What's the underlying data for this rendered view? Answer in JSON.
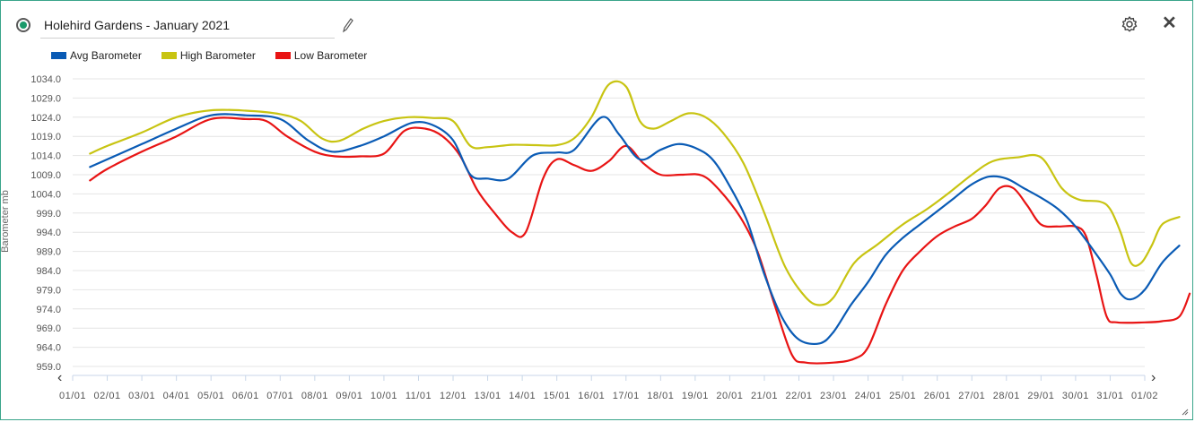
{
  "header": {
    "title": "Holehird Gardens - January 2021",
    "icons": [
      "radio-selected-icon",
      "pencil-icon",
      "gear-icon",
      "close-icon"
    ],
    "close_label": "✕"
  },
  "nav": {
    "prev": "‹",
    "next": "›"
  },
  "colors": {
    "border": "#3aa58a",
    "avg": "#0a5bb5",
    "high": "#c8c412",
    "low": "#e81414",
    "grid": "#e4e4e4"
  },
  "chart_data": {
    "type": "line",
    "ylabel": "Barometer mb",
    "ylim": [
      959.0,
      1034.0
    ],
    "yticks": [
      "1034.0",
      "1029.0",
      "1024.0",
      "1019.0",
      "1014.0",
      "1009.0",
      "1004.0",
      "999.0",
      "994.0",
      "989.0",
      "984.0",
      "979.0",
      "974.0",
      "969.0",
      "964.0",
      "959.0"
    ],
    "xtick_labels": [
      "01/01",
      "02/01",
      "03/01",
      "04/01",
      "05/01",
      "06/01",
      "07/01",
      "08/01",
      "09/01",
      "10/01",
      "11/01",
      "12/01",
      "13/01",
      "14/01",
      "15/01",
      "16/01",
      "17/01",
      "18/01",
      "19/01",
      "20/01",
      "21/01",
      "22/01",
      "23/01",
      "24/01",
      "25/01",
      "26/01",
      "27/01",
      "28/01",
      "29/01",
      "30/01",
      "31/01",
      "01/02"
    ],
    "legend_placement": "top-left",
    "grid": true,
    "series": [
      {
        "name": "Avg Barometer",
        "color": "#0a5bb5",
        "points": [
          [
            0.5,
            1011.0
          ],
          [
            1,
            1013.0
          ],
          [
            2,
            1017.0
          ],
          [
            3,
            1021.0
          ],
          [
            4,
            1024.5
          ],
          [
            5,
            1024.5
          ],
          [
            6,
            1023.5
          ],
          [
            6.8,
            1018.0
          ],
          [
            7.5,
            1015.0
          ],
          [
            8.3,
            1016.5
          ],
          [
            9,
            1019.0
          ],
          [
            9.8,
            1022.5
          ],
          [
            10.4,
            1022.0
          ],
          [
            11,
            1018.0
          ],
          [
            11.5,
            1009.0
          ],
          [
            12,
            1008.0
          ],
          [
            12.6,
            1008.0
          ],
          [
            13.3,
            1014.0
          ],
          [
            14,
            1014.8
          ],
          [
            14.5,
            1015.5
          ],
          [
            15.3,
            1024.0
          ],
          [
            15.8,
            1019.5
          ],
          [
            16.4,
            1013.0
          ],
          [
            17,
            1015.5
          ],
          [
            17.5,
            1017.0
          ],
          [
            18,
            1016.0
          ],
          [
            18.5,
            1013.0
          ],
          [
            19,
            1006.0
          ],
          [
            19.5,
            997.0
          ],
          [
            20,
            983.0
          ],
          [
            20.5,
            972.0
          ],
          [
            21,
            966.0
          ],
          [
            21.6,
            965.0
          ],
          [
            22,
            968.0
          ],
          [
            22.5,
            975.0
          ],
          [
            23,
            981.0
          ],
          [
            23.5,
            988.0
          ],
          [
            24,
            992.5
          ],
          [
            24.5,
            996.0
          ],
          [
            25,
            999.5
          ],
          [
            25.5,
            1003.0
          ],
          [
            26,
            1006.5
          ],
          [
            26.5,
            1008.5
          ],
          [
            27,
            1008.0
          ],
          [
            27.5,
            1005.5
          ],
          [
            28,
            1003.0
          ],
          [
            28.5,
            1000.0
          ],
          [
            29,
            995.5
          ],
          [
            29.5,
            989.5
          ],
          [
            30,
            983.0
          ],
          [
            30.3,
            978.0
          ],
          [
            30.6,
            976.5
          ],
          [
            31,
            979.0
          ],
          [
            31.5,
            986.0
          ],
          [
            32,
            990.5
          ]
        ]
      },
      {
        "name": "High Barometer",
        "color": "#c8c412",
        "points": [
          [
            0.5,
            1014.5
          ],
          [
            1,
            1016.5
          ],
          [
            2,
            1020.0
          ],
          [
            3,
            1024.0
          ],
          [
            4,
            1025.8
          ],
          [
            5,
            1025.7
          ],
          [
            6,
            1024.8
          ],
          [
            6.6,
            1023.0
          ],
          [
            7.2,
            1018.5
          ],
          [
            7.7,
            1017.8
          ],
          [
            8.4,
            1021.0
          ],
          [
            9,
            1023.0
          ],
          [
            9.7,
            1024.0
          ],
          [
            10.4,
            1023.8
          ],
          [
            11,
            1023.0
          ],
          [
            11.5,
            1016.5
          ],
          [
            12,
            1016.2
          ],
          [
            12.7,
            1016.8
          ],
          [
            13.4,
            1016.7
          ],
          [
            14,
            1016.7
          ],
          [
            14.5,
            1018.5
          ],
          [
            15,
            1024.0
          ],
          [
            15.5,
            1032.5
          ],
          [
            16,
            1032.0
          ],
          [
            16.4,
            1023.0
          ],
          [
            16.8,
            1021.0
          ],
          [
            17.3,
            1023.0
          ],
          [
            17.8,
            1025.0
          ],
          [
            18.3,
            1024.0
          ],
          [
            18.8,
            1020.0
          ],
          [
            19.4,
            1012.0
          ],
          [
            20,
            999.0
          ],
          [
            20.6,
            985.0
          ],
          [
            21.2,
            977.0
          ],
          [
            21.6,
            975.0
          ],
          [
            22,
            977.0
          ],
          [
            22.6,
            986.0
          ],
          [
            23.3,
            991.0
          ],
          [
            24,
            996.0
          ],
          [
            24.7,
            1000.0
          ],
          [
            25.3,
            1004.0
          ],
          [
            26,
            1009.0
          ],
          [
            26.6,
            1012.5
          ],
          [
            27.3,
            1013.5
          ],
          [
            28,
            1013.5
          ],
          [
            28.6,
            1005.5
          ],
          [
            29.1,
            1002.5
          ],
          [
            29.7,
            1002.0
          ],
          [
            30,
            1000.0
          ],
          [
            30.3,
            994.0
          ],
          [
            30.6,
            986.0
          ],
          [
            30.9,
            986.0
          ],
          [
            31.2,
            990.5
          ],
          [
            31.5,
            996.0
          ],
          [
            32,
            998.0
          ]
        ]
      },
      {
        "name": "Low Barometer",
        "color": "#e81414",
        "points": [
          [
            0.5,
            1007.5
          ],
          [
            1,
            1010.5
          ],
          [
            2,
            1015.0
          ],
          [
            3,
            1019.0
          ],
          [
            4,
            1023.5
          ],
          [
            5,
            1023.5
          ],
          [
            5.6,
            1023.0
          ],
          [
            6.2,
            1019.0
          ],
          [
            7,
            1015.0
          ],
          [
            7.6,
            1013.8
          ],
          [
            8.3,
            1013.8
          ],
          [
            9,
            1014.5
          ],
          [
            9.6,
            1020.5
          ],
          [
            10.2,
            1021.0
          ],
          [
            10.7,
            1019.0
          ],
          [
            11.2,
            1014.0
          ],
          [
            11.7,
            1005.0
          ],
          [
            12.2,
            999.0
          ],
          [
            12.7,
            994.0
          ],
          [
            13.1,
            994.0
          ],
          [
            13.6,
            1008.0
          ],
          [
            14.0,
            1013.0
          ],
          [
            14.5,
            1011.5
          ],
          [
            15,
            1010.0
          ],
          [
            15.5,
            1012.5
          ],
          [
            16,
            1016.5
          ],
          [
            16.5,
            1012.0
          ],
          [
            17,
            1009.0
          ],
          [
            17.6,
            1009.0
          ],
          [
            18.2,
            1008.8
          ],
          [
            18.7,
            1005.0
          ],
          [
            19.3,
            998.0
          ],
          [
            19.8,
            989.0
          ],
          [
            20.3,
            975.0
          ],
          [
            20.8,
            962.0
          ],
          [
            21.2,
            960.0
          ],
          [
            22,
            960.0
          ],
          [
            22.6,
            961.0
          ],
          [
            23,
            964.0
          ],
          [
            23.5,
            975.0
          ],
          [
            24,
            984.0
          ],
          [
            24.5,
            989.0
          ],
          [
            25,
            993.0
          ],
          [
            25.5,
            995.5
          ],
          [
            26,
            997.5
          ],
          [
            26.4,
            1001.0
          ],
          [
            26.8,
            1005.5
          ],
          [
            27.2,
            1005.5
          ],
          [
            27.6,
            1001.0
          ],
          [
            28,
            996.0
          ],
          [
            28.5,
            995.5
          ],
          [
            29,
            995.5
          ],
          [
            29.3,
            993.0
          ],
          [
            29.6,
            983.0
          ],
          [
            29.9,
            972.0
          ],
          [
            30.2,
            970.5
          ],
          [
            31,
            970.5
          ],
          [
            31.5,
            970.8
          ],
          [
            32,
            972.0
          ],
          [
            32.3,
            978.0
          ]
        ]
      }
    ]
  }
}
